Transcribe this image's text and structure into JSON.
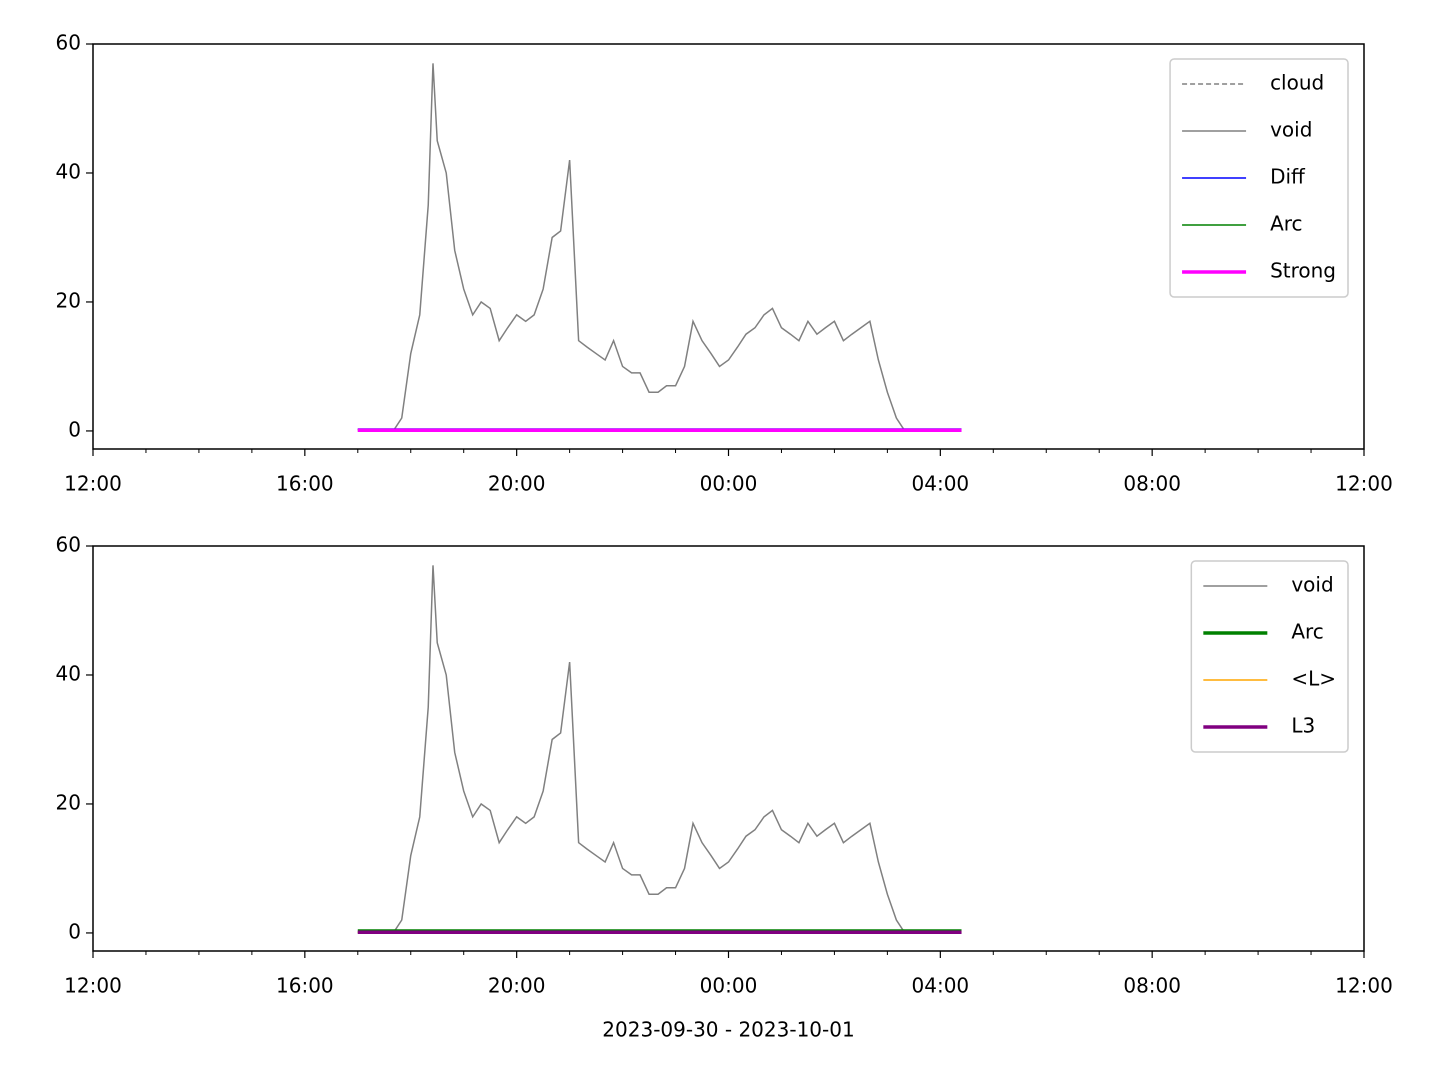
{
  "chart_data": [
    {
      "type": "line",
      "x": [
        17,
        17.17,
        17.33,
        17.5,
        17.67,
        17.83,
        18,
        18.17,
        18.33,
        18.42,
        18.5,
        18.67,
        18.83,
        19,
        19.17,
        19.33,
        19.5,
        19.67,
        19.83,
        20,
        20.17,
        20.33,
        20.5,
        20.67,
        20.83,
        21,
        21.17,
        21.33,
        21.5,
        21.67,
        21.83,
        22,
        22.17,
        22.33,
        22.5,
        22.67,
        22.83,
        23,
        23.17,
        23.33,
        23.5,
        23.67,
        23.83,
        24,
        24.17,
        24.33,
        24.5,
        24.67,
        24.83,
        25,
        25.17,
        25.33,
        25.5,
        25.67,
        25.83,
        26,
        26.17,
        26.33,
        26.5,
        26.67,
        26.83,
        27,
        27.17,
        27.33,
        27.5,
        27.67,
        27.83,
        28,
        28.17,
        28.33,
        28.4
      ],
      "series": [
        {
          "name": "cloud",
          "color": "#808080",
          "linestyle": "dashed",
          "linewidth": 1.5,
          "x": [
            17,
            28.4
          ],
          "values": [
            null,
            null
          ]
        },
        {
          "name": "void",
          "color": "#808080",
          "linewidth": 1.5,
          "values": [
            0,
            0,
            0,
            0,
            0,
            2,
            12,
            18,
            35,
            57,
            45,
            40,
            28,
            22,
            18,
            20,
            19,
            14,
            16,
            18,
            17,
            18,
            22,
            30,
            31,
            42,
            14,
            13,
            12,
            11,
            14,
            10,
            9,
            9,
            6,
            6,
            7,
            7,
            10,
            17,
            14,
            12,
            10,
            11,
            13,
            15,
            16,
            18,
            19,
            16,
            15,
            14,
            17,
            15,
            16,
            17,
            14,
            15,
            16,
            17,
            11,
            6,
            2,
            0,
            0,
            0,
            0,
            0,
            0,
            0,
            0
          ]
        },
        {
          "name": "Diff",
          "color": "#0000ff",
          "linewidth": 1.5,
          "x": [
            17,
            28.4
          ],
          "values": [
            0.3,
            0.3
          ]
        },
        {
          "name": "Arc",
          "color": "#008000",
          "linewidth": 1.5,
          "x": [
            17,
            28.4
          ],
          "values": [
            0.2,
            0.2
          ]
        },
        {
          "name": "Strong",
          "color": "#ff00ff",
          "linewidth": 3.5,
          "x": [
            17,
            28.4
          ],
          "values": [
            0.1,
            0.1
          ]
        }
      ],
      "xlim": [
        12,
        36
      ],
      "xticks": [
        {
          "value": 12,
          "label": "12:00"
        },
        {
          "value": 16,
          "label": "16:00"
        },
        {
          "value": 20,
          "label": "20:00"
        },
        {
          "value": 24,
          "label": "00:00"
        },
        {
          "value": 28,
          "label": "04:00"
        },
        {
          "value": 32,
          "label": "08:00"
        },
        {
          "value": 36,
          "label": "12:00"
        }
      ],
      "ylim": [
        -2.8,
        60
      ],
      "yticks": [
        0,
        20,
        40,
        60
      ],
      "legend": "upper right"
    },
    {
      "type": "line",
      "x": [
        17,
        17.17,
        17.33,
        17.5,
        17.67,
        17.83,
        18,
        18.17,
        18.33,
        18.42,
        18.5,
        18.67,
        18.83,
        19,
        19.17,
        19.33,
        19.5,
        19.67,
        19.83,
        20,
        20.17,
        20.33,
        20.5,
        20.67,
        20.83,
        21,
        21.17,
        21.33,
        21.5,
        21.67,
        21.83,
        22,
        22.17,
        22.33,
        22.5,
        22.67,
        22.83,
        23,
        23.17,
        23.33,
        23.5,
        23.67,
        23.83,
        24,
        24.17,
        24.33,
        24.5,
        24.67,
        24.83,
        25,
        25.17,
        25.33,
        25.5,
        25.67,
        25.83,
        26,
        26.17,
        26.33,
        26.5,
        26.67,
        26.83,
        27,
        27.17,
        27.33,
        27.5,
        27.67,
        27.83,
        28,
        28.17,
        28.33,
        28.4
      ],
      "series": [
        {
          "name": "void",
          "color": "#808080",
          "linewidth": 1.5,
          "values": [
            0,
            0,
            0,
            0,
            0,
            2,
            12,
            18,
            35,
            57,
            45,
            40,
            28,
            22,
            18,
            20,
            19,
            14,
            16,
            18,
            17,
            18,
            22,
            30,
            31,
            42,
            14,
            13,
            12,
            11,
            14,
            10,
            9,
            9,
            6,
            6,
            7,
            7,
            10,
            17,
            14,
            12,
            10,
            11,
            13,
            15,
            16,
            18,
            19,
            16,
            15,
            14,
            17,
            15,
            16,
            17,
            14,
            15,
            16,
            17,
            11,
            6,
            2,
            0,
            0,
            0,
            0,
            0,
            0,
            0,
            0
          ]
        },
        {
          "name": "Arc",
          "color": "#008000",
          "linewidth": 3.5,
          "x": [
            17,
            28.4
          ],
          "values": [
            0.3,
            0.3
          ]
        },
        {
          "name": "<L>",
          "color": "#ffa500",
          "linewidth": 1.5,
          "x": [
            17,
            28.4
          ],
          "values": [
            0.1,
            0.1
          ]
        },
        {
          "name": "L3",
          "color": "#800080",
          "linewidth": 3.5,
          "x": [
            17,
            28.4
          ],
          "values": [
            0.1,
            0.1
          ]
        }
      ],
      "xlim": [
        12,
        36
      ],
      "xticks": [
        {
          "value": 12,
          "label": "12:00"
        },
        {
          "value": 16,
          "label": "16:00"
        },
        {
          "value": 20,
          "label": "20:00"
        },
        {
          "value": 24,
          "label": "00:00"
        },
        {
          "value": 28,
          "label": "04:00"
        },
        {
          "value": 32,
          "label": "08:00"
        },
        {
          "value": 36,
          "label": "12:00"
        }
      ],
      "ylim": [
        -2.8,
        60
      ],
      "yticks": [
        0,
        20,
        40,
        60
      ],
      "legend": "upper right",
      "xlabel": "2023-09-30 - 2023-10-01"
    }
  ]
}
